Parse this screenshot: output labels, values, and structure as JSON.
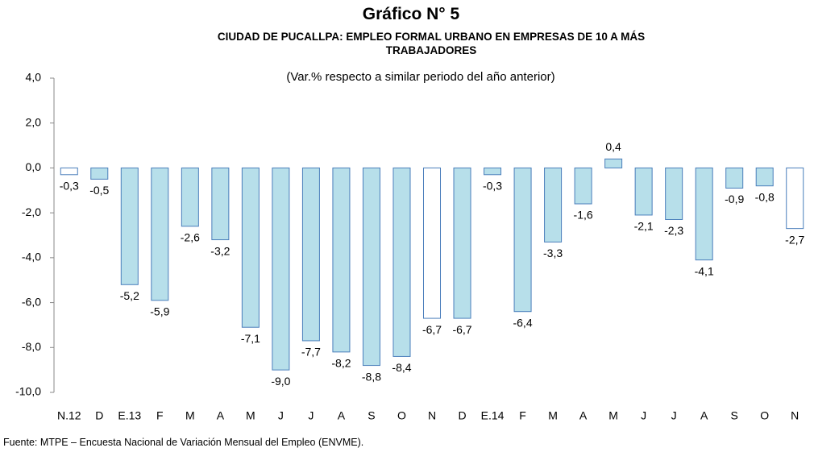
{
  "chart_data": {
    "type": "bar",
    "title": "Gráfico N° 5",
    "subtitle": "CIUDAD DE PUCALLPA: EMPLEO FORMAL URBANO EN EMPRESAS DE 10 A MÁS TRABAJADORES",
    "note": "(Var.% respecto a similar periodo del año anterior)",
    "source": "Fuente: MTPE – Encuesta Nacional de Variación Mensual del Empleo (ENVME).",
    "categories": [
      "N.12",
      "D",
      "E.13",
      "F",
      "M",
      "A",
      "M",
      "J",
      "J",
      "A",
      "S",
      "O",
      "N",
      "D",
      "E.14",
      "F",
      "M",
      "A",
      "M",
      "J",
      "J",
      "A",
      "S",
      "O",
      "N"
    ],
    "values": [
      -0.3,
      -0.5,
      -5.2,
      -5.9,
      -2.6,
      -3.2,
      -7.1,
      -9.0,
      -7.7,
      -8.2,
      -8.8,
      -8.4,
      -6.7,
      -6.7,
      -0.3,
      -6.4,
      -3.3,
      -1.6,
      0.4,
      -2.1,
      -2.3,
      -4.1,
      -0.9,
      -0.8,
      -2.7
    ],
    "value_labels": [
      "-0,3",
      "-0,5",
      "-5,2",
      "-5,9",
      "-2,6",
      "-3,2",
      "-7,1",
      "-9,0",
      "-7,7",
      "-8,2",
      "-8,8",
      "-8,4",
      "-6,7",
      "-6,7",
      "-0,3",
      "-6,4",
      "-3,3",
      "-1,6",
      "0,4",
      "-2,1",
      "-2,3",
      "-4,1",
      "-0,9",
      "-0,8",
      "-2,7"
    ],
    "colors": [
      "#ffffff",
      "#b7dfea",
      "#b7dfea",
      "#b7dfea",
      "#b7dfea",
      "#b7dfea",
      "#b7dfea",
      "#b7dfea",
      "#b7dfea",
      "#b7dfea",
      "#b7dfea",
      "#b7dfea",
      "#ffffff",
      "#b7dfea",
      "#b7dfea",
      "#b7dfea",
      "#b7dfea",
      "#b7dfea",
      "#b7dfea",
      "#b7dfea",
      "#b7dfea",
      "#b7dfea",
      "#b7dfea",
      "#b7dfea",
      "#ffffff"
    ],
    "edge_color": "#4a7ebb",
    "ylim": [
      -10,
      4
    ],
    "yticks": [
      {
        "value": -10,
        "label": "-10,0"
      },
      {
        "value": -8,
        "label": "-8,0"
      },
      {
        "value": -6,
        "label": "-6,0"
      },
      {
        "value": -4,
        "label": "-4,0"
      },
      {
        "value": -2,
        "label": "-2,0"
      },
      {
        "value": 0,
        "label": "0,0"
      },
      {
        "value": 2,
        "label": "2,0"
      },
      {
        "value": 4,
        "label": "4,0"
      }
    ],
    "grid": false
  }
}
